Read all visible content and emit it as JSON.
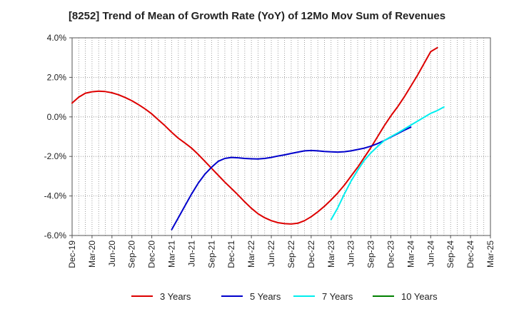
{
  "chart_data": {
    "type": "line",
    "title": "[8252]  Trend of Mean of Growth Rate (YoY) of 12Mo Mov Sum of Revenues",
    "xlabel": "",
    "ylabel": "",
    "ylim": [
      -6.0,
      4.0
    ],
    "y_ticks": [
      "4.0%",
      "2.0%",
      "0.0%",
      "-2.0%",
      "-4.0%",
      "-6.0%"
    ],
    "y_tick_values": [
      4,
      2,
      0,
      -2,
      -4,
      -6
    ],
    "x_ticks": [
      "Dec-19",
      "Mar-20",
      "Jun-20",
      "Sep-20",
      "Dec-20",
      "Mar-21",
      "Jun-21",
      "Sep-21",
      "Dec-21",
      "Mar-22",
      "Jun-22",
      "Sep-22",
      "Dec-22",
      "Mar-23",
      "Jun-23",
      "Sep-23",
      "Dec-23",
      "Mar-24",
      "Jun-24",
      "Sep-24",
      "Dec-24",
      "Mar-25"
    ],
    "grid": true,
    "legend_position": "bottom",
    "series": [
      {
        "name": "3 Years",
        "color": "#dd0000",
        "x": [
          0,
          1,
          2,
          3,
          4,
          5,
          6,
          7,
          8,
          9,
          10,
          11,
          12,
          13,
          14,
          15,
          16,
          17,
          18,
          19,
          20,
          21,
          22,
          23,
          24,
          25,
          26,
          27,
          28,
          29,
          30,
          31,
          32,
          33,
          34,
          35,
          36,
          37,
          38,
          39,
          40,
          41,
          42,
          43,
          44,
          45,
          46,
          47,
          48,
          49,
          50,
          51,
          52,
          53,
          54,
          55,
          56,
          57,
          58,
          59,
          60
        ],
        "values": [
          0.7,
          1.0,
          1.2,
          1.27,
          1.3,
          1.28,
          1.22,
          1.12,
          0.98,
          0.82,
          0.62,
          0.4,
          0.15,
          -0.15,
          -0.45,
          -0.78,
          -1.08,
          -1.32,
          -1.58,
          -1.9,
          -2.25,
          -2.6,
          -2.95,
          -3.3,
          -3.62,
          -3.95,
          -4.3,
          -4.62,
          -4.9,
          -5.1,
          -5.25,
          -5.35,
          -5.4,
          -5.42,
          -5.38,
          -5.25,
          -5.05,
          -4.8,
          -4.52,
          -4.2,
          -3.85,
          -3.45,
          -3.0,
          -2.55,
          -2.05,
          -1.55,
          -1.0,
          -0.45,
          0.05,
          0.5,
          1.0,
          1.55,
          2.1,
          2.7,
          3.3,
          3.5,
          null,
          null,
          null,
          null,
          null
        ]
      },
      {
        "name": "5 Years",
        "color": "#0000cc",
        "x": [
          15,
          16,
          17,
          18,
          19,
          20,
          21,
          22,
          23,
          24,
          25,
          26,
          27,
          28,
          29,
          30,
          31,
          32,
          33,
          34,
          35,
          36,
          37,
          38,
          39,
          40,
          41,
          42,
          43,
          44,
          45,
          46,
          47,
          48,
          49,
          50,
          51,
          52,
          53,
          54,
          55,
          56,
          57,
          58,
          59,
          60
        ],
        "values": [
          -5.7,
          -5.1,
          -4.5,
          -3.9,
          -3.35,
          -2.9,
          -2.55,
          -2.25,
          -2.1,
          -2.05,
          -2.07,
          -2.1,
          -2.12,
          -2.13,
          -2.1,
          -2.05,
          -1.98,
          -1.92,
          -1.85,
          -1.78,
          -1.72,
          -1.7,
          -1.72,
          -1.75,
          -1.77,
          -1.78,
          -1.76,
          -1.72,
          -1.65,
          -1.58,
          -1.48,
          -1.35,
          -1.2,
          -1.02,
          -0.85,
          -0.68,
          -0.52,
          null,
          null,
          null,
          null,
          null,
          null,
          null,
          null,
          null
        ]
      },
      {
        "name": "7 Years",
        "color": "#00eeee",
        "x": [
          39,
          40,
          41,
          42,
          43,
          44,
          45,
          46,
          47,
          48,
          49,
          50,
          51,
          52,
          53,
          54,
          55,
          56,
          57,
          58,
          59,
          60
        ],
        "values": [
          -5.2,
          -4.6,
          -3.9,
          -3.25,
          -2.7,
          -2.2,
          -1.82,
          -1.5,
          -1.2,
          -1.0,
          -0.82,
          -0.62,
          -0.42,
          -0.22,
          -0.02,
          0.18,
          0.32,
          0.5,
          null,
          null,
          null,
          null
        ]
      },
      {
        "name": "10 Years",
        "color": "#008000",
        "x": [],
        "values": []
      }
    ]
  }
}
